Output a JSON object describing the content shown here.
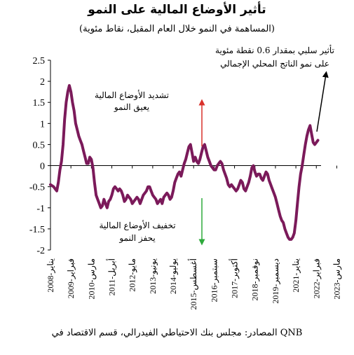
{
  "chart_data": {
    "type": "line",
    "title": "تأثير الأوضاع المالية على النمو",
    "subtitle": "(المساهمة في النمو خلال العام المقبل، نقاط مئوية)",
    "source": "المصادر: مجلس بنك الاحتياطي الفيدرالي، قسم الاقتصاد في QNB",
    "ylim": [
      -2,
      2.5
    ],
    "y_ticks": [
      "2.5",
      "2",
      "1.5",
      "1",
      "0.5",
      "0",
      "-0.5",
      "-1",
      "-1.5",
      "-2"
    ],
    "x_ticks": [
      "يناير-2008",
      "فبراير-2009",
      "مارس-2010",
      "أبريل-2011",
      "مايو-2012",
      "يونيو-2013",
      "يوليو-2014",
      "أغسطس-2015",
      "سبتمبر-2016",
      "أكتوبر-2017",
      "نوفمبر-2018",
      "ديسمبر-2019",
      "يناير-2021",
      "فبراير-2022",
      "مارس-2023"
    ],
    "x_tick_months": [
      0,
      13,
      26,
      39,
      52,
      65,
      78,
      91,
      104,
      117,
      130,
      143,
      156,
      169,
      182
    ],
    "series": [
      {
        "color": "#7b1a5a",
        "points": [
          [
            0,
            -0.45
          ],
          [
            2,
            -0.5
          ],
          [
            3,
            -0.55
          ],
          [
            4,
            -0.6
          ],
          [
            5,
            -0.4
          ],
          [
            6,
            -0.1
          ],
          [
            7,
            0.1
          ],
          [
            8,
            0.5
          ],
          [
            9,
            1.1
          ],
          [
            10,
            1.5
          ],
          [
            11,
            1.75
          ],
          [
            12,
            1.9
          ],
          [
            13,
            1.75
          ],
          [
            14,
            1.5
          ],
          [
            15,
            1.3
          ],
          [
            16,
            1.0
          ],
          [
            17,
            0.85
          ],
          [
            18,
            0.7
          ],
          [
            19,
            0.6
          ],
          [
            20,
            0.5
          ],
          [
            21,
            0.35
          ],
          [
            22,
            0.2
          ],
          [
            23,
            0.05
          ],
          [
            24,
            0.05
          ],
          [
            25,
            0.2
          ],
          [
            26,
            0.15
          ],
          [
            27,
            -0.05
          ],
          [
            28,
            -0.4
          ],
          [
            29,
            -0.7
          ],
          [
            30,
            -0.8
          ],
          [
            31,
            -0.9
          ],
          [
            32,
            -1.0
          ],
          [
            33,
            -0.95
          ],
          [
            34,
            -0.8
          ],
          [
            35,
            -0.9
          ],
          [
            36,
            -1.0
          ],
          [
            37,
            -0.85
          ],
          [
            38,
            -0.8
          ],
          [
            39,
            -0.7
          ],
          [
            40,
            -0.55
          ],
          [
            41,
            -0.5
          ],
          [
            42,
            -0.55
          ],
          [
            43,
            -0.6
          ],
          [
            44,
            -0.55
          ],
          [
            45,
            -0.6
          ],
          [
            46,
            -0.7
          ],
          [
            47,
            -0.85
          ],
          [
            48,
            -0.8
          ],
          [
            49,
            -0.7
          ],
          [
            50,
            -0.75
          ],
          [
            51,
            -0.8
          ],
          [
            52,
            -0.9
          ],
          [
            53,
            -0.85
          ],
          [
            54,
            -0.8
          ],
          [
            55,
            -0.75
          ],
          [
            56,
            -0.8
          ],
          [
            57,
            -0.9
          ],
          [
            58,
            -0.8
          ],
          [
            59,
            -0.7
          ],
          [
            60,
            -0.65
          ],
          [
            61,
            -0.6
          ],
          [
            62,
            -0.5
          ],
          [
            63,
            -0.5
          ],
          [
            64,
            -0.6
          ],
          [
            65,
            -0.7
          ],
          [
            66,
            -0.75
          ],
          [
            67,
            -0.8
          ],
          [
            68,
            -0.9
          ],
          [
            69,
            -0.85
          ],
          [
            70,
            -0.8
          ],
          [
            71,
            -0.9
          ],
          [
            72,
            -0.75
          ],
          [
            73,
            -0.7
          ],
          [
            74,
            -0.65
          ],
          [
            75,
            -0.7
          ],
          [
            76,
            -0.8
          ],
          [
            77,
            -0.75
          ],
          [
            78,
            -0.6
          ],
          [
            79,
            -0.4
          ],
          [
            80,
            -0.3
          ],
          [
            81,
            -0.2
          ],
          [
            82,
            -0.15
          ],
          [
            83,
            -0.25
          ],
          [
            84,
            -0.1
          ],
          [
            85,
            0.05
          ],
          [
            86,
            0.15
          ],
          [
            87,
            0.3
          ],
          [
            88,
            0.45
          ],
          [
            89,
            0.5
          ],
          [
            90,
            0.3
          ],
          [
            91,
            0.1
          ],
          [
            92,
            0.2
          ],
          [
            93,
            0.1
          ],
          [
            94,
            0.05
          ],
          [
            95,
            0.15
          ],
          [
            96,
            0.3
          ],
          [
            97,
            0.45
          ],
          [
            98,
            0.5
          ],
          [
            99,
            0.35
          ],
          [
            100,
            0.2
          ],
          [
            101,
            0.1
          ],
          [
            102,
            0.0
          ],
          [
            103,
            -0.05
          ],
          [
            104,
            -0.1
          ],
          [
            105,
            -0.1
          ],
          [
            106,
            0.0
          ],
          [
            107,
            0.05
          ],
          [
            108,
            0.1
          ],
          [
            109,
            0.05
          ],
          [
            110,
            -0.1
          ],
          [
            111,
            -0.2
          ],
          [
            112,
            -0.3
          ],
          [
            113,
            -0.45
          ],
          [
            114,
            -0.5
          ],
          [
            115,
            -0.45
          ],
          [
            116,
            -0.5
          ],
          [
            117,
            -0.55
          ],
          [
            118,
            -0.6
          ],
          [
            119,
            -0.55
          ],
          [
            120,
            -0.45
          ],
          [
            121,
            -0.35
          ],
          [
            122,
            -0.4
          ],
          [
            123,
            -0.55
          ],
          [
            124,
            -0.6
          ],
          [
            125,
            -0.5
          ],
          [
            126,
            -0.4
          ],
          [
            127,
            -0.25
          ],
          [
            128,
            -0.05
          ],
          [
            129,
            0.0
          ],
          [
            130,
            -0.15
          ],
          [
            131,
            -0.25
          ],
          [
            132,
            -0.2
          ],
          [
            133,
            -0.2
          ],
          [
            134,
            -0.3
          ],
          [
            135,
            -0.35
          ],
          [
            136,
            -0.25
          ],
          [
            137,
            -0.15
          ],
          [
            138,
            -0.2
          ],
          [
            139,
            -0.35
          ],
          [
            140,
            -0.45
          ],
          [
            141,
            -0.55
          ],
          [
            142,
            -0.65
          ],
          [
            143,
            -0.75
          ],
          [
            144,
            -0.9
          ],
          [
            145,
            -1.05
          ],
          [
            146,
            -1.2
          ],
          [
            147,
            -1.3
          ],
          [
            148,
            -1.35
          ],
          [
            149,
            -1.5
          ],
          [
            150,
            -1.6
          ],
          [
            151,
            -1.7
          ],
          [
            152,
            -1.75
          ],
          [
            153,
            -1.75
          ],
          [
            154,
            -1.7
          ],
          [
            155,
            -1.6
          ],
          [
            156,
            -1.3
          ],
          [
            157,
            -0.9
          ],
          [
            158,
            -0.5
          ],
          [
            159,
            -0.2
          ],
          [
            160,
            0.0
          ],
          [
            161,
            0.25
          ],
          [
            162,
            0.5
          ],
          [
            163,
            0.7
          ],
          [
            164,
            0.85
          ],
          [
            165,
            0.95
          ],
          [
            166,
            0.75
          ],
          [
            167,
            0.55
          ],
          [
            168,
            0.5
          ],
          [
            169,
            0.55
          ],
          [
            170,
            0.6
          ]
        ]
      }
    ]
  },
  "annotations": {
    "tightening": "تشديد الأوضاع المالية يعيق النمو",
    "tightening_lines": [
      "تشديد الأوضاع المالية",
      "يعيق النمو"
    ],
    "easing_lines": [
      "تخفيف الأوضاع المالية",
      "يحفز النمو"
    ],
    "impact_lines": [
      "تأثير سلبي بمقدار 0.6 نقطة مئوية",
      "على نمو الناتج المحلي الإجمالي"
    ],
    "up_arrow_color": "#d9312b",
    "down_arrow_color": "#2eaa3c"
  }
}
